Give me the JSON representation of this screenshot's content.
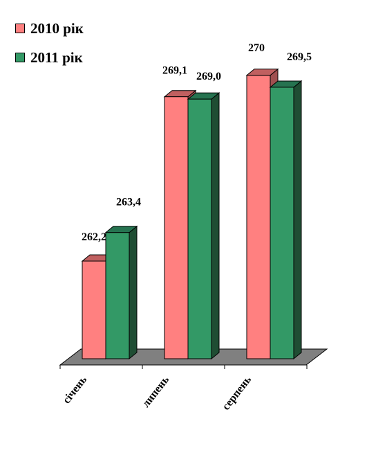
{
  "chart_data": {
    "type": "bar",
    "categories": [
      "січень",
      "липень",
      "серпень"
    ],
    "series": [
      {
        "name": "2010 рік",
        "values": [
          262.2,
          269.1,
          270
        ],
        "labels": [
          "262,2",
          "269,1",
          "270"
        ],
        "color": "#ff8080",
        "top_color": "#c06060",
        "side_color": "#a05050"
      },
      {
        "name": "2011 рік",
        "values": [
          263.4,
          269.0,
          269.5
        ],
        "labels": [
          "263,4",
          "269,0",
          "269,5"
        ],
        "color": "#339966",
        "top_color": "#267350",
        "side_color": "#1f4d33"
      }
    ],
    "ylim": [
      258.1,
      270.4
    ],
    "grid": false,
    "legend_position": "top-left",
    "floor_color": "#808080"
  }
}
